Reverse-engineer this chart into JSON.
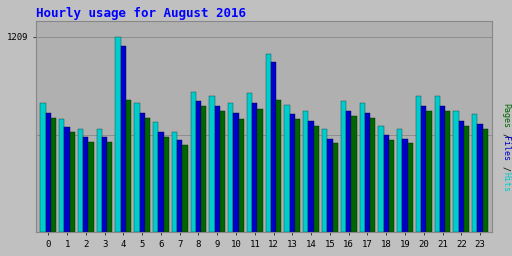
{
  "title": "Hourly usage for August 2016",
  "hours": [
    0,
    1,
    2,
    3,
    4,
    5,
    6,
    7,
    8,
    9,
    10,
    11,
    12,
    13,
    14,
    15,
    16,
    17,
    18,
    19,
    20,
    21,
    22,
    23
  ],
  "hits": [
    800,
    700,
    640,
    640,
    1209,
    800,
    680,
    620,
    870,
    840,
    800,
    860,
    1100,
    790,
    750,
    640,
    810,
    800,
    660,
    640,
    840,
    840,
    750,
    730
  ],
  "files": [
    740,
    650,
    590,
    590,
    1150,
    740,
    620,
    570,
    810,
    780,
    740,
    800,
    1050,
    730,
    690,
    580,
    750,
    740,
    600,
    580,
    780,
    780,
    690,
    670
  ],
  "pages": [
    710,
    620,
    560,
    560,
    820,
    710,
    590,
    540,
    780,
    750,
    700,
    760,
    820,
    700,
    660,
    550,
    720,
    710,
    570,
    550,
    750,
    750,
    660,
    640
  ],
  "hits_color": "#00cccc",
  "files_color": "#0000cc",
  "pages_color": "#006600",
  "outer_bg_color": "#c0c0c0",
  "plot_bg_color": "#b0b0b0",
  "title_color": "#0000ff",
  "ymax": 1209,
  "bar_width": 0.28,
  "figwidth": 5.12,
  "figheight": 2.56,
  "dpi": 100
}
